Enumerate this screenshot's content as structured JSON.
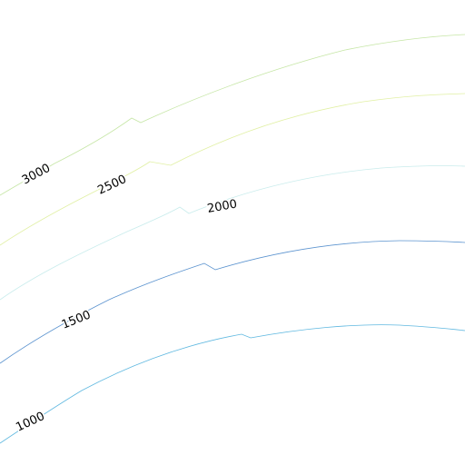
{
  "map": {
    "contours": [
      {
        "id": "c3000",
        "label": "3000",
        "color": "#c6e6a6"
      },
      {
        "id": "c2500",
        "label": "2500",
        "color": "#e1f0a4"
      },
      {
        "id": "c2000",
        "label": "2000",
        "color": "#c9ecec"
      },
      {
        "id": "c1500",
        "label": "1500",
        "color": "#5b93cf"
      },
      {
        "id": "c1000",
        "label": "1000",
        "color": "#5fb8e0"
      }
    ]
  }
}
